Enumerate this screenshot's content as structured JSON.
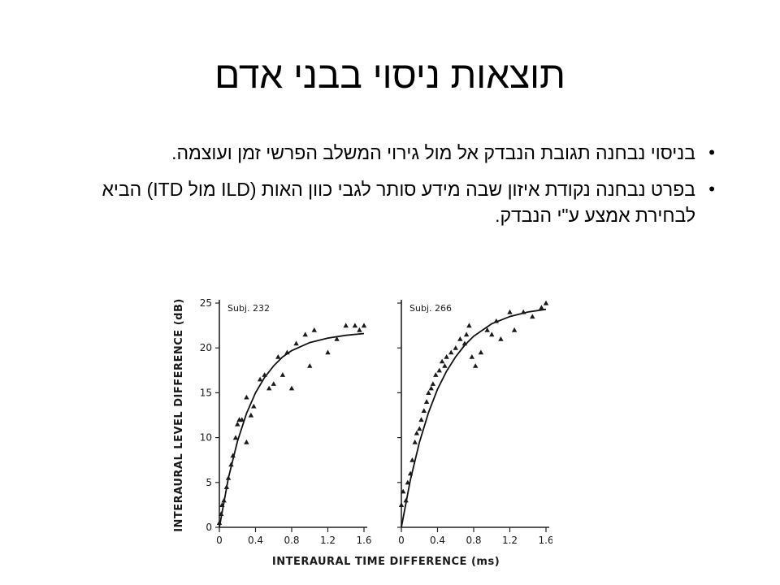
{
  "slide": {
    "title": "תוצאות ניסוי בבני אדם",
    "bullets": [
      {
        "marker": "•",
        "text": "בניסוי נבחנה תגובת הנבדק אל מול גירוי המשלב הפרשי זמן ועוצמה."
      },
      {
        "marker": "•",
        "text": "בפרט נבחנה נקודת איזון שבה מידע סותר לגבי כוון האות (ILD מול ITD) הביא לבחירת אמצע ע\"י הנבדק."
      }
    ]
  },
  "chart_data": [
    {
      "type": "scatter",
      "title": "Subj. 232",
      "xlabel": "INTERAURAL TIME DIFFERENCE (ms)",
      "ylabel": "INTERAURAL LEVEL DIFFERENCE (dB)",
      "xlim": [
        0,
        1.6
      ],
      "ylim": [
        0,
        25
      ],
      "x_ticks": [
        "0",
        "0.4",
        "0.8",
        "1.2",
        "1.6"
      ],
      "y_ticks": [
        "0",
        "5",
        "10",
        "15",
        "20",
        "25"
      ],
      "series": [
        {
          "values": [
            [
              0.0,
              0.5
            ],
            [
              0.02,
              1.5
            ],
            [
              0.03,
              2.5
            ],
            [
              0.05,
              3.0
            ],
            [
              0.08,
              4.5
            ],
            [
              0.1,
              5.5
            ],
            [
              0.13,
              7.0
            ],
            [
              0.15,
              8.0
            ],
            [
              0.18,
              10.0
            ],
            [
              0.2,
              11.5
            ],
            [
              0.22,
              12.0
            ],
            [
              0.25,
              12.0
            ],
            [
              0.3,
              14.5
            ],
            [
              0.3,
              9.5
            ],
            [
              0.35,
              12.5
            ],
            [
              0.38,
              13.5
            ],
            [
              0.45,
              16.5
            ],
            [
              0.5,
              17.0
            ],
            [
              0.55,
              15.5
            ],
            [
              0.6,
              16.0
            ],
            [
              0.65,
              19.0
            ],
            [
              0.7,
              17.0
            ],
            [
              0.75,
              19.5
            ],
            [
              0.8,
              15.5
            ],
            [
              0.85,
              20.5
            ],
            [
              0.95,
              21.5
            ],
            [
              1.0,
              18.0
            ],
            [
              1.05,
              22.0
            ],
            [
              1.2,
              19.5
            ],
            [
              1.3,
              21.0
            ],
            [
              1.4,
              22.5
            ],
            [
              1.5,
              22.5
            ],
            [
              1.55,
              22.0
            ],
            [
              1.6,
              22.5
            ]
          ]
        },
        {
          "fit": true,
          "values": [
            [
              0.0,
              0.0
            ],
            [
              0.1,
              5.5
            ],
            [
              0.2,
              9.6
            ],
            [
              0.3,
              12.7
            ],
            [
              0.4,
              15.0
            ],
            [
              0.5,
              16.7
            ],
            [
              0.6,
              18.0
            ],
            [
              0.7,
              19.0
            ],
            [
              0.8,
              19.7
            ],
            [
              1.0,
              20.6
            ],
            [
              1.2,
              21.1
            ],
            [
              1.4,
              21.4
            ],
            [
              1.6,
              21.6
            ]
          ]
        }
      ]
    },
    {
      "type": "scatter",
      "title": "Subj. 266",
      "xlabel": "INTERAURAL TIME DIFFERENCE (ms)",
      "ylabel": "",
      "xlim": [
        0,
        1.6
      ],
      "ylim": [
        0,
        25
      ],
      "x_ticks": [
        "0",
        "0.4",
        "0.8",
        "1.2",
        "1.6"
      ],
      "y_ticks": [],
      "series": [
        {
          "values": [
            [
              0.0,
              2.5
            ],
            [
              0.02,
              4.0
            ],
            [
              0.05,
              3.0
            ],
            [
              0.07,
              5.0
            ],
            [
              0.1,
              6.0
            ],
            [
              0.12,
              7.5
            ],
            [
              0.15,
              9.5
            ],
            [
              0.17,
              10.5
            ],
            [
              0.2,
              11.0
            ],
            [
              0.22,
              12.0
            ],
            [
              0.25,
              13.0
            ],
            [
              0.28,
              14.0
            ],
            [
              0.3,
              15.0
            ],
            [
              0.33,
              15.5
            ],
            [
              0.35,
              16.0
            ],
            [
              0.38,
              17.0
            ],
            [
              0.42,
              17.5
            ],
            [
              0.45,
              18.5
            ],
            [
              0.48,
              18.0
            ],
            [
              0.5,
              19.0
            ],
            [
              0.55,
              19.5
            ],
            [
              0.6,
              20.0
            ],
            [
              0.65,
              21.0
            ],
            [
              0.7,
              20.5
            ],
            [
              0.72,
              21.5
            ],
            [
              0.75,
              22.5
            ],
            [
              0.78,
              19.0
            ],
            [
              0.82,
              18.0
            ],
            [
              0.88,
              19.5
            ],
            [
              0.95,
              22.0
            ],
            [
              1.0,
              21.5
            ],
            [
              1.05,
              23.0
            ],
            [
              1.1,
              21.0
            ],
            [
              1.2,
              24.0
            ],
            [
              1.25,
              22.0
            ],
            [
              1.35,
              24.0
            ],
            [
              1.45,
              23.5
            ],
            [
              1.55,
              24.5
            ],
            [
              1.6,
              25.0
            ]
          ]
        },
        {
          "fit": true,
          "values": [
            [
              0.0,
              0.0
            ],
            [
              0.1,
              5.3
            ],
            [
              0.2,
              9.5
            ],
            [
              0.3,
              12.8
            ],
            [
              0.4,
              15.4
            ],
            [
              0.5,
              17.4
            ],
            [
              0.6,
              19.0
            ],
            [
              0.7,
              20.3
            ],
            [
              0.8,
              21.3
            ],
            [
              1.0,
              22.7
            ],
            [
              1.2,
              23.5
            ],
            [
              1.4,
              24.0
            ],
            [
              1.6,
              24.3
            ]
          ]
        }
      ]
    }
  ]
}
